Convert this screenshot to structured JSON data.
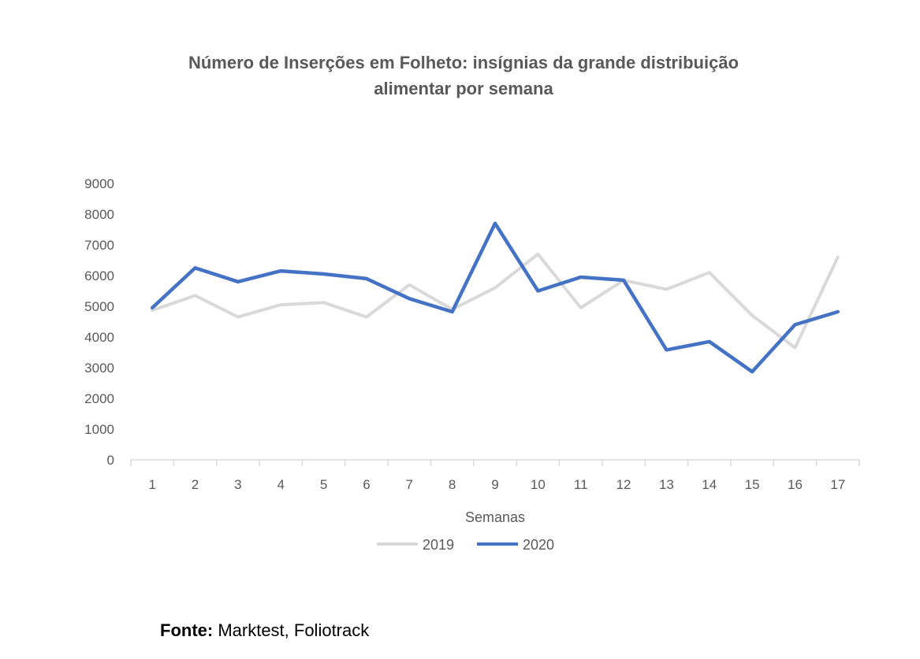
{
  "chart_data": {
    "type": "line",
    "title_lines": [
      "Número de Inserções em Folheto: insígnias da grande distribuição",
      "alimentar por semana"
    ],
    "xlabel": "Semanas",
    "ylabel": "",
    "categories": [
      "1",
      "2",
      "3",
      "4",
      "5",
      "6",
      "7",
      "8",
      "9",
      "10",
      "11",
      "12",
      "13",
      "14",
      "15",
      "16",
      "17"
    ],
    "ylim": [
      0,
      9000
    ],
    "yticks": [
      0,
      1000,
      2000,
      3000,
      4000,
      5000,
      6000,
      7000,
      8000,
      9000
    ],
    "grid": false,
    "legend_position": "bottom",
    "series": [
      {
        "name": "2019",
        "color": "#d9d9d9",
        "values": [
          4870,
          5350,
          4650,
          5050,
          5120,
          4650,
          5700,
          4900,
          5600,
          6700,
          4950,
          5850,
          5550,
          6100,
          4700,
          3650,
          6600
        ]
      },
      {
        "name": "2020",
        "color": "#4472c4",
        "values": [
          4950,
          6250,
          5800,
          6150,
          6050,
          5900,
          5250,
          4820,
          7700,
          5500,
          5950,
          5850,
          3580,
          3850,
          2870,
          4400,
          4820
        ]
      }
    ]
  },
  "source": {
    "label": "Fonte:",
    "text": " Marktest, Foliotrack"
  }
}
